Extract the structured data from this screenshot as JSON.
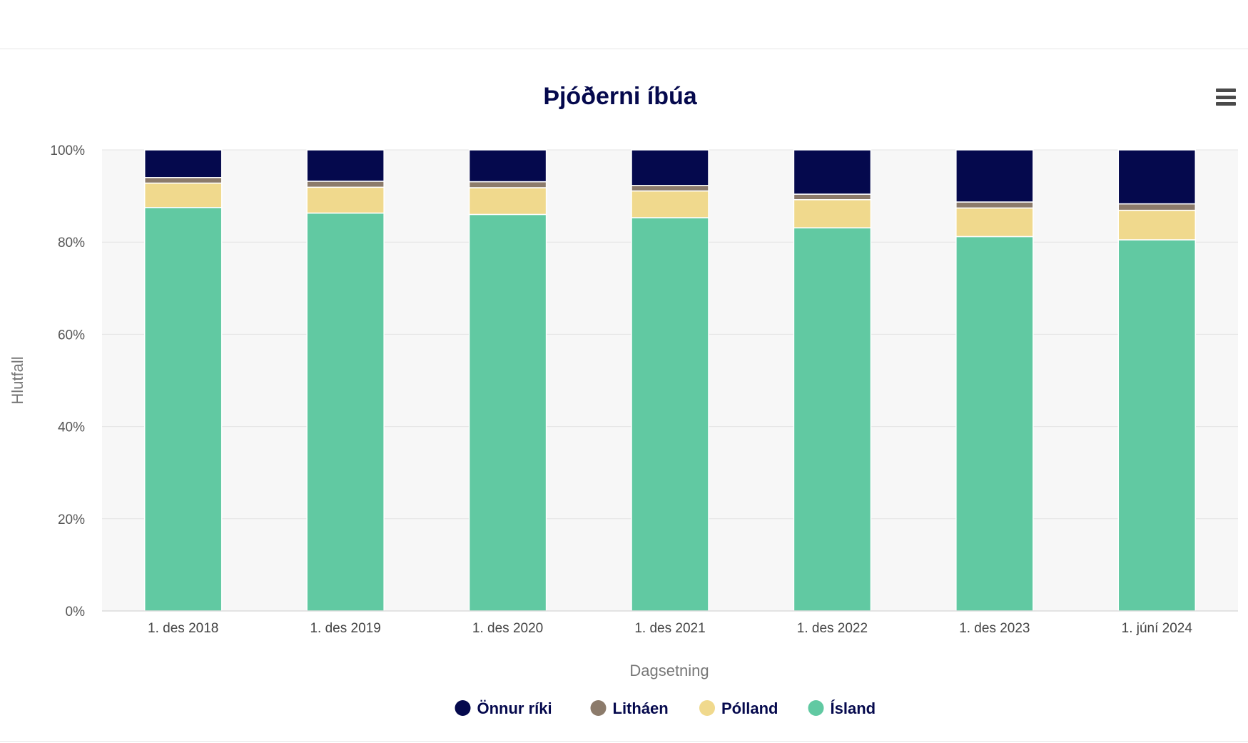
{
  "chart_data": {
    "type": "bar",
    "stacked": "percent",
    "title": "Þjóðerni íbúa",
    "xlabel": "Dagsetning",
    "ylabel": "Hlutfall",
    "ylim": [
      0,
      100
    ],
    "yticks": [
      "0%",
      "20%",
      "40%",
      "60%",
      "80%",
      "100%"
    ],
    "categories": [
      "1. des 2018",
      "1. des 2019",
      "1. des 2020",
      "1. des 2021",
      "1. des 2022",
      "1. des 2023",
      "1. júní 2024"
    ],
    "series": [
      {
        "name": "Ísland",
        "color": "#61c9a2",
        "values": [
          87.5,
          86.3,
          86.0,
          85.3,
          83.1,
          81.2,
          80.5
        ]
      },
      {
        "name": "Pólland",
        "color": "#f0d98d",
        "values": [
          5.3,
          5.6,
          5.8,
          5.8,
          6.1,
          6.2,
          6.4
        ]
      },
      {
        "name": "Litháen",
        "color": "#8c7b6b",
        "values": [
          1.2,
          1.3,
          1.3,
          1.2,
          1.2,
          1.3,
          1.4
        ]
      },
      {
        "name": "Önnur ríki",
        "color": "#05094d",
        "values": [
          6.0,
          6.8,
          6.9,
          7.7,
          9.6,
          11.3,
          11.7
        ]
      }
    ],
    "legend": {
      "position": "bottom",
      "order": [
        "Önnur ríki",
        "Litháen",
        "Pólland",
        "Ísland"
      ]
    },
    "grid": true
  },
  "menu_icon": "hamburger-menu-icon"
}
